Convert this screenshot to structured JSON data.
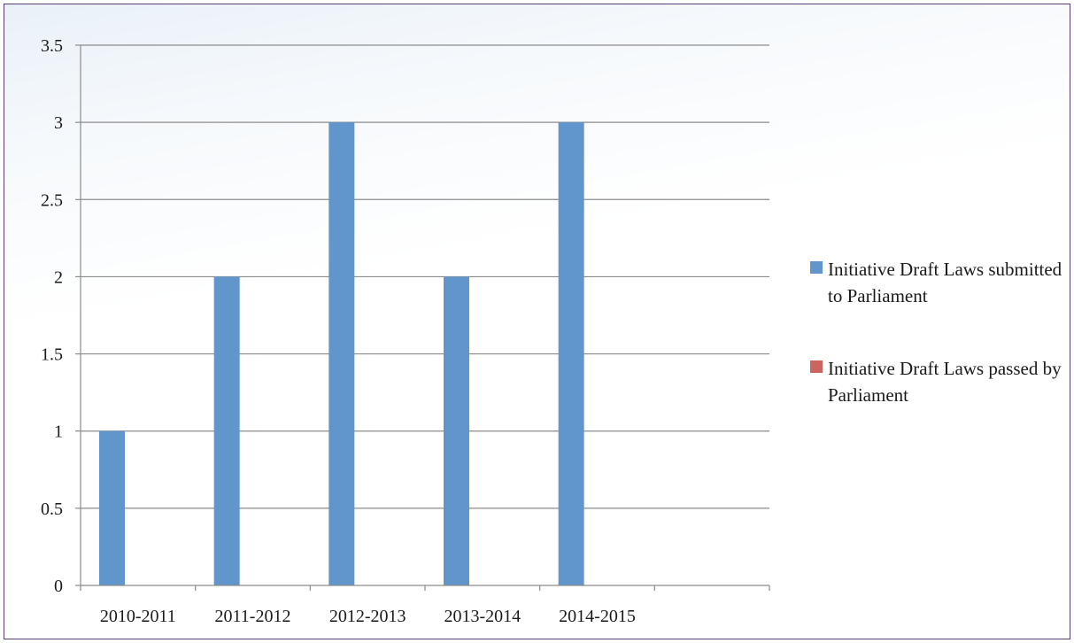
{
  "chart_data": {
    "type": "bar",
    "categories": [
      "2010-2011",
      "2011-2012",
      "2012-2013",
      "2013-2014",
      "2014-2015",
      ""
    ],
    "series": [
      {
        "name": "Initiative Draft Laws submitted to Parliament",
        "color": "#6196cc",
        "values": [
          1,
          2,
          3,
          2,
          3,
          null
        ]
      },
      {
        "name": "Initiative Draft Laws passed by Parliament",
        "color": "#cc6560",
        "values": [
          0,
          0,
          0,
          0,
          0,
          null
        ]
      }
    ],
    "title": "",
    "xlabel": "",
    "ylabel": "",
    "ylim": [
      0,
      3.5
    ],
    "yticks": [
      "0",
      "0.5",
      "1",
      "1.5",
      "2",
      "2.5",
      "3",
      "3.5"
    ],
    "grid": true,
    "legend_position": "right"
  }
}
